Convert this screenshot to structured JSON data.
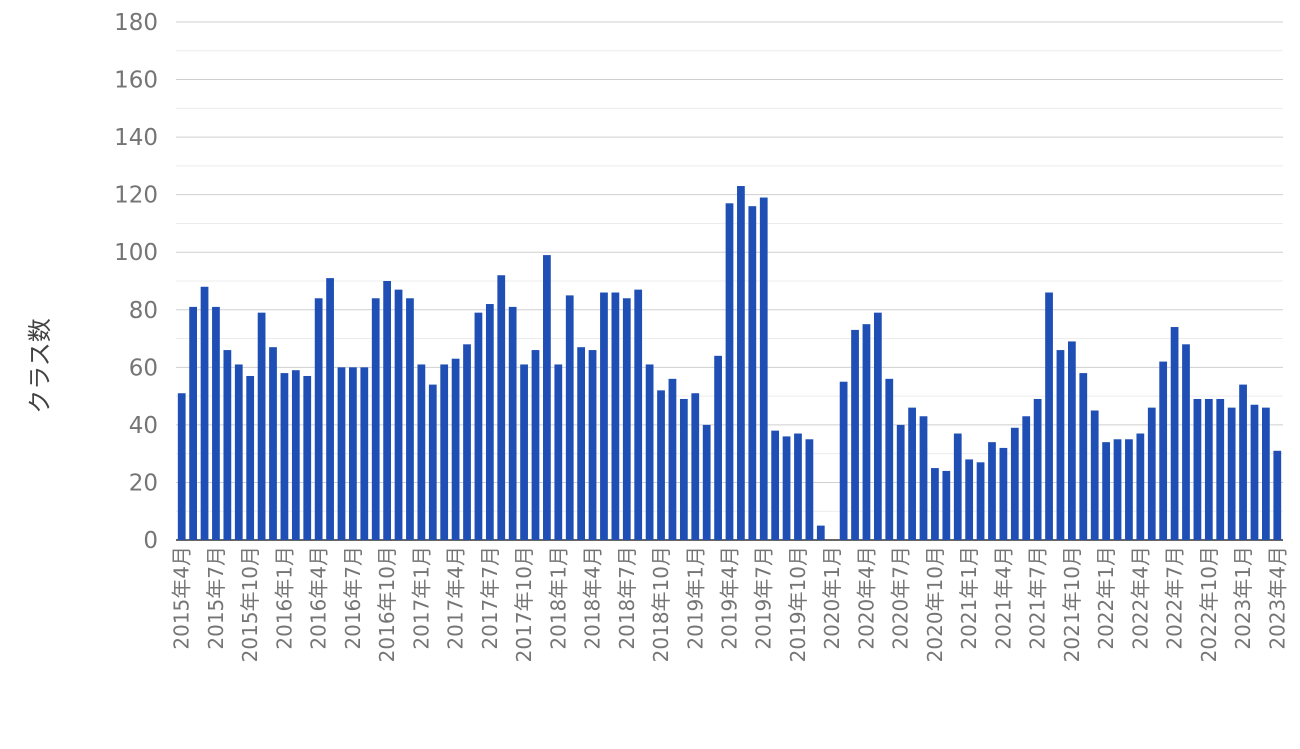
{
  "chart_data": {
    "type": "bar",
    "title": "",
    "xlabel": "",
    "ylabel": "クラス数",
    "ylim": [
      0,
      180
    ],
    "y_ticks": [
      0,
      20,
      40,
      60,
      80,
      100,
      120,
      140,
      160,
      180
    ],
    "grid": true,
    "legend": "none",
    "colors": {
      "bar": "#1f4fb4",
      "grid_major": "#cfcfcf",
      "grid_minor": "#ececec",
      "tick_text": "#757575",
      "axis_title": "#424242"
    },
    "categories": [
      "2015年4月",
      "2015年5月",
      "2015年6月",
      "2015年7月",
      "2015年8月",
      "2015年9月",
      "2015年10月",
      "2015年11月",
      "2015年12月",
      "2016年1月",
      "2016年2月",
      "2016年3月",
      "2016年4月",
      "2016年5月",
      "2016年6月",
      "2016年7月",
      "2016年8月",
      "2016年9月",
      "2016年10月",
      "2016年11月",
      "2016年12月",
      "2017年1月",
      "2017年2月",
      "2017年3月",
      "2017年4月",
      "2017年5月",
      "2017年6月",
      "2017年7月",
      "2017年8月",
      "2017年9月",
      "2017年10月",
      "2017年11月",
      "2017年12月",
      "2018年1月",
      "2018年2月",
      "2018年3月",
      "2018年4月",
      "2018年5月",
      "2018年6月",
      "2018年7月",
      "2018年8月",
      "2018年9月",
      "2018年10月",
      "2018年11月",
      "2018年12月",
      "2019年1月",
      "2019年2月",
      "2019年3月",
      "2019年4月",
      "2019年5月",
      "2019年6月",
      "2019年7月",
      "2019年8月",
      "2019年9月",
      "2019年10月",
      "2019年11月",
      "2019年12月",
      "2020年1月",
      "2020年2月",
      "2020年3月",
      "2020年4月",
      "2020年5月",
      "2020年6月",
      "2020年7月",
      "2020年8月",
      "2020年9月",
      "2020年10月",
      "2020年11月",
      "2020年12月",
      "2021年1月",
      "2021年2月",
      "2021年3月",
      "2021年4月",
      "2021年5月",
      "2021年6月",
      "2021年7月",
      "2021年8月",
      "2021年9月",
      "2021年10月",
      "2021年11月",
      "2021年12月",
      "2022年1月",
      "2022年2月",
      "2022年3月",
      "2022年4月",
      "2022年5月",
      "2022年6月",
      "2022年7月",
      "2022年8月",
      "2022年9月",
      "2022年10月",
      "2022年11月",
      "2022年12月",
      "2023年1月",
      "2023年2月",
      "2023年3月",
      "2023年4月"
    ],
    "values": [
      51,
      81,
      88,
      81,
      66,
      61,
      57,
      79,
      67,
      58,
      59,
      57,
      84,
      91,
      60,
      60,
      60,
      84,
      90,
      87,
      84,
      61,
      54,
      61,
      63,
      68,
      79,
      82,
      92,
      81,
      61,
      66,
      99,
      61,
      85,
      67,
      66,
      86,
      86,
      84,
      87,
      61,
      52,
      56,
      49,
      51,
      40,
      64,
      117,
      123,
      116,
      119,
      38,
      36,
      37,
      35,
      5,
      0,
      55,
      73,
      75,
      79,
      56,
      40,
      46,
      43,
      25,
      24,
      37,
      28,
      27,
      34,
      32,
      39,
      43,
      49,
      86,
      66,
      69,
      58,
      45,
      34,
      35,
      35,
      37,
      46,
      62,
      74,
      68,
      49,
      49,
      49,
      46,
      54,
      47,
      46,
      31
    ],
    "x_tick_labels": [
      "2015年4月",
      "2015年7月",
      "2015年10月",
      "2016年1月",
      "2016年4月",
      "2016年7月",
      "2016年10月",
      "2017年1月",
      "2017年4月",
      "2017年7月",
      "2017年10月",
      "2018年1月",
      "2018年4月",
      "2018年7月",
      "2018年10月",
      "2019年1月",
      "2019年4月",
      "2019年7月",
      "2019年10月",
      "2020年1月",
      "2020年4月",
      "2020年7月",
      "2020年10月",
      "2021年1月",
      "2021年4月",
      "2021年7月",
      "2021年10月",
      "2022年1月",
      "2022年4月",
      "2022年7月",
      "2022年10月",
      "2023年1月",
      "2023年4月"
    ]
  }
}
